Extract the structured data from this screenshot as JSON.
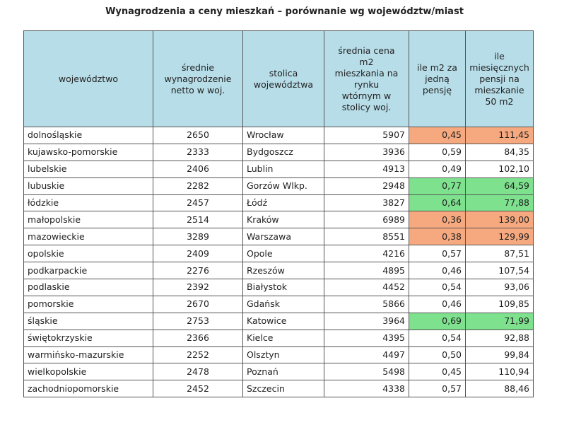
{
  "title": "Wynagrodzenia a ceny mieszkań – porównanie wg województw/miast",
  "colors": {
    "header_bg": "#b7dde8",
    "low_value_bg": "#f6a97f",
    "high_value_bg": "#7ee18e",
    "border": "#555555"
  },
  "chart_data": {
    "type": "table",
    "title": "Wynagrodzenia a ceny mieszkań – porównanie wg województw/miast",
    "columns": [
      "województwo",
      "średnie\nwynagrodzenie\nnetto w woj.",
      "stolica\nwojewództwa",
      "średnia cena\nm2\nmieszkania na\nrynku\nwtórnym w\nstolicy woj.",
      "ile m2 za\njedną\npensję",
      "ile\nmiesięcznych\npensji na\nmieszkanie\n50 m2"
    ],
    "rows": [
      {
        "voivodeship": "dolnośląskie",
        "salary": "2650",
        "capital": "Wrocław",
        "price_m2": "5907",
        "m2_per_salary": "0,45",
        "months": "111,45",
        "hl": "bad"
      },
      {
        "voivodeship": "kujawsko-pomorskie",
        "salary": "2333",
        "capital": "Bydgoszcz",
        "price_m2": "3936",
        "m2_per_salary": "0,59",
        "months": "84,35",
        "hl": ""
      },
      {
        "voivodeship": "lubelskie",
        "salary": "2406",
        "capital": "Lublin",
        "price_m2": "4913",
        "m2_per_salary": "0,49",
        "months": "102,10",
        "hl": ""
      },
      {
        "voivodeship": "lubuskie",
        "salary": "2282",
        "capital": "Gorzów Wlkp.",
        "price_m2": "2948",
        "m2_per_salary": "0,77",
        "months": "64,59",
        "hl": "good"
      },
      {
        "voivodeship": "łódzkie",
        "salary": "2457",
        "capital": "Łódź",
        "price_m2": "3827",
        "m2_per_salary": "0,64",
        "months": "77,88",
        "hl": "good"
      },
      {
        "voivodeship": "małopolskie",
        "salary": "2514",
        "capital": "Kraków",
        "price_m2": "6989",
        "m2_per_salary": "0,36",
        "months": "139,00",
        "hl": "bad"
      },
      {
        "voivodeship": "mazowieckie",
        "salary": "3289",
        "capital": "Warszawa",
        "price_m2": "8551",
        "m2_per_salary": "0,38",
        "months": "129,99",
        "hl": "bad"
      },
      {
        "voivodeship": "opolskie",
        "salary": "2409",
        "capital": "Opole",
        "price_m2": "4216",
        "m2_per_salary": "0,57",
        "months": "87,51",
        "hl": ""
      },
      {
        "voivodeship": "podkarpackie",
        "salary": "2276",
        "capital": "Rzeszów",
        "price_m2": "4895",
        "m2_per_salary": "0,46",
        "months": "107,54",
        "hl": ""
      },
      {
        "voivodeship": "podlaskie",
        "salary": "2392",
        "capital": "Białystok",
        "price_m2": "4452",
        "m2_per_salary": "0,54",
        "months": "93,06",
        "hl": ""
      },
      {
        "voivodeship": "pomorskie",
        "salary": "2670",
        "capital": "Gdańsk",
        "price_m2": "5866",
        "m2_per_salary": "0,46",
        "months": "109,85",
        "hl": ""
      },
      {
        "voivodeship": "śląskie",
        "salary": "2753",
        "capital": "Katowice",
        "price_m2": "3964",
        "m2_per_salary": "0,69",
        "months": "71,99",
        "hl": "good"
      },
      {
        "voivodeship": "świętokrzyskie",
        "salary": "2366",
        "capital": "Kielce",
        "price_m2": "4395",
        "m2_per_salary": "0,54",
        "months": "92,88",
        "hl": ""
      },
      {
        "voivodeship": "warmińsko-mazurskie",
        "salary": "2252",
        "capital": "Olsztyn",
        "price_m2": "4497",
        "m2_per_salary": "0,50",
        "months": "99,84",
        "hl": ""
      },
      {
        "voivodeship": "wielkopolskie",
        "salary": "2478",
        "capital": "Poznań",
        "price_m2": "5498",
        "m2_per_salary": "0,45",
        "months": "110,94",
        "hl": ""
      },
      {
        "voivodeship": "zachodniopomorskie",
        "salary": "2452",
        "capital": "Szczecin",
        "price_m2": "4338",
        "m2_per_salary": "0,57",
        "months": "88,46",
        "hl": ""
      }
    ]
  }
}
